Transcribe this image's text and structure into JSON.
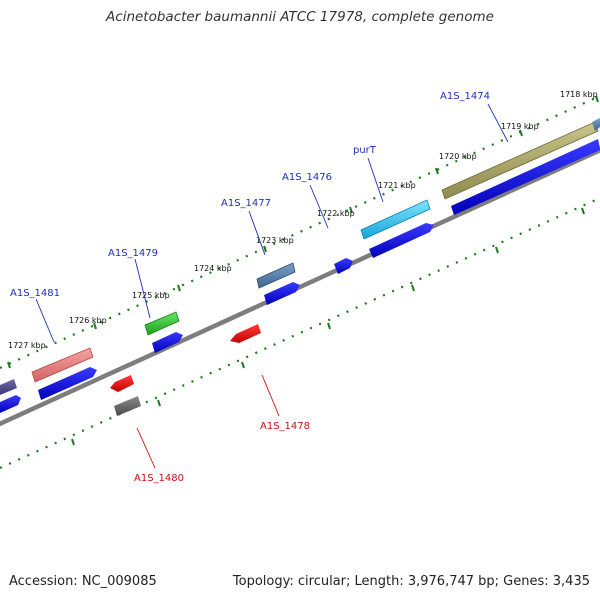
{
  "title": "Acinetobacter baumannii ATCC 17978, complete genome",
  "footer": {
    "accession": "Accession: NC_009085",
    "summary": "Topology: circular; Length: 3,976,747 bp; Genes: 3,435"
  },
  "colors": {
    "backbone": "#7d7d7d",
    "tick": "#1e7a1e",
    "label_top": "#1f2fb8",
    "label_bottom": "#cc1111",
    "cds": "#1111dd"
  },
  "ticks": [
    {
      "label": "1718 kbp"
    },
    {
      "label": "1719 kbp"
    },
    {
      "label": "1720 kbp"
    },
    {
      "label": "1721 kbp"
    },
    {
      "label": "1722 kbp"
    },
    {
      "label": "1723 kbp"
    },
    {
      "label": "1724 kbp"
    },
    {
      "label": "1725 kbp"
    },
    {
      "label": "1726 kbp"
    },
    {
      "label": "1727 kbp"
    }
  ],
  "gene_labels": [
    {
      "name": "A1S_1474",
      "strand": "forward"
    },
    {
      "name": "purT",
      "strand": "forward"
    },
    {
      "name": "A1S_1476",
      "strand": "forward"
    },
    {
      "name": "A1S_1477",
      "strand": "forward"
    },
    {
      "name": "A1S_1479",
      "strand": "forward"
    },
    {
      "name": "A1S_1481",
      "strand": "forward"
    },
    {
      "name": "A1S_1478",
      "strand": "reverse"
    },
    {
      "name": "A1S_1480",
      "strand": "reverse"
    }
  ]
}
